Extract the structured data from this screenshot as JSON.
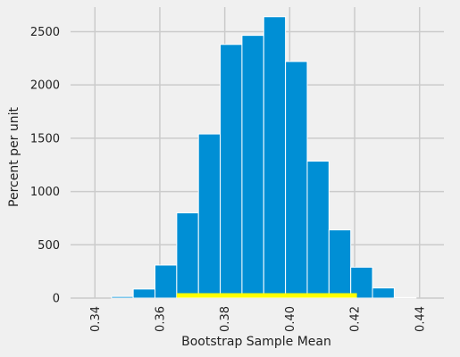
{
  "chart_data": {
    "type": "bar",
    "subtype": "histogram",
    "title": "",
    "xlabel": "Bootstrap Sample Mean",
    "ylabel": "Percent per unit",
    "xlim": [
      0.3325,
      0.4475
    ],
    "ylim": [
      0,
      2730
    ],
    "grid": true,
    "x_ticks": [
      {
        "value": 0.34,
        "label": "0.34"
      },
      {
        "value": 0.36,
        "label": "0.36"
      },
      {
        "value": 0.38,
        "label": "0.38"
      },
      {
        "value": 0.4,
        "label": "0.40"
      },
      {
        "value": 0.42,
        "label": "0.42"
      },
      {
        "value": 0.44,
        "label": "0.44"
      }
    ],
    "y_ticks": [
      {
        "value": 0,
        "label": "0"
      },
      {
        "value": 500,
        "label": "500"
      },
      {
        "value": 1000,
        "label": "1000"
      },
      {
        "value": 1500,
        "label": "1500"
      },
      {
        "value": 2000,
        "label": "2000"
      },
      {
        "value": 2500,
        "label": "2500"
      }
    ],
    "bins": [
      {
        "start": 0.3451,
        "end": 0.3518,
        "value": 15
      },
      {
        "start": 0.3518,
        "end": 0.3585,
        "value": 85
      },
      {
        "start": 0.3585,
        "end": 0.3652,
        "value": 310
      },
      {
        "start": 0.3652,
        "end": 0.3719,
        "value": 800
      },
      {
        "start": 0.3719,
        "end": 0.3786,
        "value": 1540
      },
      {
        "start": 0.3786,
        "end": 0.3853,
        "value": 2380
      },
      {
        "start": 0.3853,
        "end": 0.392,
        "value": 2465
      },
      {
        "start": 0.392,
        "end": 0.3987,
        "value": 2640
      },
      {
        "start": 0.3987,
        "end": 0.4054,
        "value": 2220
      },
      {
        "start": 0.4054,
        "end": 0.4121,
        "value": 1285
      },
      {
        "start": 0.4121,
        "end": 0.4188,
        "value": 640
      },
      {
        "start": 0.4188,
        "end": 0.4255,
        "value": 290
      },
      {
        "start": 0.4255,
        "end": 0.4322,
        "value": 95
      },
      {
        "start": 0.4322,
        "end": 0.4389,
        "value": 5
      }
    ],
    "interval": {
      "left": 0.3652,
      "right": 0.4207
    },
    "colors": {
      "bar": "#008fd5",
      "bar_edge": "#ffffff",
      "interval": "#ffff00",
      "grid": "#cbcbcb",
      "background": "#f0f0f0"
    }
  }
}
